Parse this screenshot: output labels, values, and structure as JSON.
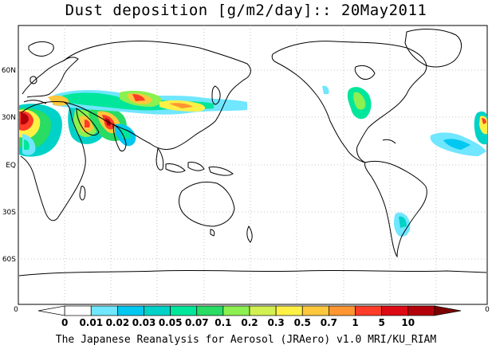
{
  "title": "Dust deposition [g/m2/day]:: 20May2011",
  "footer": "The Japanese Reanalysis for Aerosol (JRAero) v1.0 MRI/KU_RIAM",
  "latitude_labels": [
    "60N",
    "30N",
    "EQ",
    "30S",
    "60S"
  ],
  "frame_ticks": {
    "left": "0",
    "right": "0"
  },
  "colorbar": {
    "labels": [
      "0",
      "0.01",
      "0.02",
      "0.03",
      "0.05",
      "0.07",
      "0.1",
      "0.2",
      "0.3",
      "0.5",
      "0.7",
      "1",
      "5",
      "10"
    ],
    "colors": [
      "#ffffff",
      "#ffffff",
      "#70e6ff",
      "#00c8f0",
      "#00d2c8",
      "#00e69b",
      "#28dc64",
      "#8cf050",
      "#d2f050",
      "#fff046",
      "#ffc83c",
      "#ff9632",
      "#ff3c28",
      "#dc0a14",
      "#b4000a",
      "#7d0000"
    ]
  },
  "colors": {
    "land_outline": "#000000",
    "grid": "#b4b4b4"
  }
}
